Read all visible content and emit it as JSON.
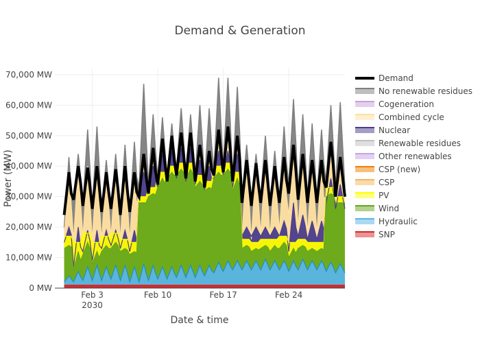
{
  "chart_data": {
    "type": "area",
    "title": "Demand & Generation",
    "xlabel": "Date & time",
    "ylabel": "Power (MW)",
    "ylim": [
      0,
      72000
    ],
    "xlim": [
      "2030-01-30",
      "2030-03-02"
    ],
    "y_ticks": [
      0,
      10000,
      20000,
      30000,
      40000,
      50000,
      60000,
      70000
    ],
    "y_tick_labels": [
      "0 MW",
      "10,000 MW",
      "20,000 MW",
      "30,000 MW",
      "40,000 MW",
      "50,000 MW",
      "60,000 MW",
      "70,000 MW"
    ],
    "x_ticks": [
      "2030-02-03",
      "2030-02-10",
      "2030-02-17",
      "2030-02-24"
    ],
    "x_tick_labels": [
      "Feb 3",
      "Feb 10",
      "Feb 17",
      "Feb 24"
    ],
    "x_tick_sublabel": "2030",
    "grid": true,
    "legend_position": "right",
    "stack_order": [
      "SNP",
      "Hydraulic",
      "Wind",
      "PV",
      "CSP",
      "Nuclear",
      "Combined cycle",
      "Renewable residues",
      "No renewable residues"
    ],
    "x": [
      "Jan 31",
      "Feb 1",
      "Feb 2",
      "Feb 3",
      "Feb 4",
      "Feb 5",
      "Feb 6",
      "Feb 7",
      "Feb 8",
      "Feb 9",
      "Feb 10",
      "Feb 11",
      "Feb 12",
      "Feb 13",
      "Feb 14",
      "Feb 15",
      "Feb 16",
      "Feb 17",
      "Feb 18",
      "Feb 19",
      "Feb 20",
      "Feb 21",
      "Feb 22",
      "Feb 23",
      "Feb 24",
      "Feb 25",
      "Feb 26",
      "Feb 27",
      "Feb 28",
      "Mar 1"
    ],
    "series": [
      {
        "name": "Demand",
        "color": "#000000",
        "kind": "line",
        "peaks": [
          38000,
          40000,
          39500,
          40000,
          38000,
          39000,
          40000,
          38000,
          44000,
          46000,
          49000,
          50000,
          51000,
          51000,
          47000,
          45000,
          52000,
          53000,
          50000,
          42000,
          41000,
          42000,
          40000,
          43000,
          47000,
          44000,
          42000,
          42000,
          48000,
          43000
        ],
        "troughs": [
          24000,
          29000,
          27000,
          26000,
          25000,
          26000,
          24000,
          25000,
          30000,
          31000,
          34000,
          35000,
          37000,
          36000,
          35000,
          33000,
          37000,
          38000,
          35000,
          28000,
          27000,
          28000,
          27000,
          28000,
          31000,
          29000,
          28000,
          28000,
          33000,
          30000
        ]
      },
      {
        "name": "No renewable residues",
        "color": "#7f7f7f",
        "kind": "area",
        "peaks": [
          43000,
          44000,
          52000,
          53000,
          42000,
          44000,
          47000,
          48000,
          67000,
          57000,
          56000,
          54000,
          59000,
          57000,
          60000,
          59000,
          69000,
          69000,
          66000,
          47000,
          44000,
          50000,
          45000,
          53000,
          62000,
          57000,
          54000,
          52000,
          60000,
          61000
        ],
        "troughs": [
          20000,
          29000,
          27000,
          26000,
          25000,
          26000,
          24000,
          25000,
          33000,
          34000,
          36000,
          37000,
          39000,
          38000,
          37000,
          35000,
          39000,
          40000,
          36000,
          30000,
          28000,
          30000,
          28000,
          30000,
          34000,
          32000,
          30000,
          30000,
          35000,
          33000
        ]
      },
      {
        "name": "Cogeneration",
        "color": "#c9a0dc",
        "kind": "area"
      },
      {
        "name": "Combined cycle",
        "color": "#ffe0a0",
        "kind": "area",
        "peaks": [
          38000,
          40000,
          40000,
          40000,
          38000,
          39000,
          40000,
          38000,
          41000,
          44000,
          48000,
          47000,
          48000,
          48000,
          45000,
          44000,
          48000,
          48000,
          47000,
          42000,
          41000,
          42000,
          40000,
          42000,
          45000,
          43000,
          41000,
          41000,
          46000,
          42000
        ],
        "troughs": [
          17000,
          16000,
          17000,
          16000,
          16000,
          17000,
          16000,
          16000,
          32000,
          33000,
          35000,
          37000,
          38000,
          37000,
          36000,
          34000,
          38000,
          39000,
          35000,
          17000,
          16000,
          18000,
          17000,
          19000,
          24000,
          20000,
          18000,
          18000,
          30000,
          28000
        ]
      },
      {
        "name": "Nuclear",
        "color": "#4a3c8c",
        "kind": "area",
        "peaks": [
          20000,
          20000,
          19000,
          19000,
          19000,
          19000,
          19000,
          19000,
          38000,
          40000,
          44000,
          45000,
          46000,
          46000,
          42000,
          40000,
          45000,
          45000,
          44000,
          20000,
          20000,
          20000,
          20000,
          22000,
          28000,
          24000,
          22000,
          22000,
          36000,
          34000
        ],
        "troughs": [
          15000,
          7000,
          12000,
          9000,
          13000,
          14000,
          13000,
          12000,
          30000,
          31000,
          33000,
          35000,
          36000,
          35000,
          34000,
          32000,
          36000,
          37000,
          33000,
          17000,
          17000,
          17000,
          17000,
          17000,
          12000,
          17000,
          16000,
          16000,
          28000,
          26000
        ]
      },
      {
        "name": "Renewable residues",
        "color": "#bfbfbf",
        "kind": "area"
      },
      {
        "name": "Other renewables",
        "color": "#c5a3e6",
        "kind": "area"
      },
      {
        "name": "CSP (new)",
        "color": "#f07f00",
        "kind": "area"
      },
      {
        "name": "CSP",
        "color": "#f5b55b",
        "kind": "area"
      },
      {
        "name": "PV",
        "color": "#ffff00",
        "kind": "area",
        "peaks": [
          17000,
          15000,
          18000,
          15000,
          17000,
          18000,
          16000,
          15000,
          30000,
          33000,
          38000,
          40000,
          41000,
          41000,
          37000,
          35000,
          40000,
          41000,
          38000,
          16000,
          15000,
          16000,
          16000,
          17000,
          15000,
          16000,
          15000,
          15000,
          33000,
          30000
        ]
      },
      {
        "name": "Wind",
        "color": "#66a61e",
        "kind": "area",
        "peaks": [
          14000,
          12000,
          15000,
          12000,
          14000,
          15000,
          13000,
          12000,
          28000,
          31000,
          36000,
          38000,
          39000,
          39000,
          35000,
          33000,
          38000,
          39000,
          36000,
          14000,
          13000,
          14000,
          14000,
          15000,
          13000,
          14000,
          13000,
          13000,
          31000,
          28000
        ],
        "troughs": [
          13000,
          6000,
          11000,
          8000,
          12000,
          13000,
          12000,
          11000,
          28000,
          30000,
          33000,
          36000,
          37000,
          36000,
          33000,
          32000,
          36000,
          37000,
          32000,
          13000,
          12000,
          13000,
          12000,
          13000,
          10000,
          13000,
          12000,
          12000,
          30000,
          28000
        ]
      },
      {
        "name": "Hydraulic",
        "color": "#5ab4e6",
        "kind": "area",
        "peaks": [
          4000,
          5500,
          7000,
          7500,
          7000,
          7500,
          7500,
          7000,
          8000,
          7500,
          7000,
          7000,
          7500,
          7500,
          7500,
          7500,
          8500,
          9000,
          9000,
          9000,
          9000,
          9500,
          9000,
          9000,
          9000,
          9500,
          9000,
          9000,
          8500,
          8000
        ],
        "troughs": [
          2000,
          2000,
          2500,
          2500,
          2500,
          3000,
          2500,
          2000,
          2000,
          2500,
          3000,
          3000,
          3500,
          3500,
          3500,
          4000,
          5000,
          5500,
          6000,
          6000,
          6000,
          6000,
          6000,
          6000,
          5500,
          6000,
          6000,
          6000,
          5500,
          5000
        ]
      },
      {
        "name": "SNP",
        "color": "#d62728",
        "kind": "area",
        "value": 1000
      }
    ]
  }
}
